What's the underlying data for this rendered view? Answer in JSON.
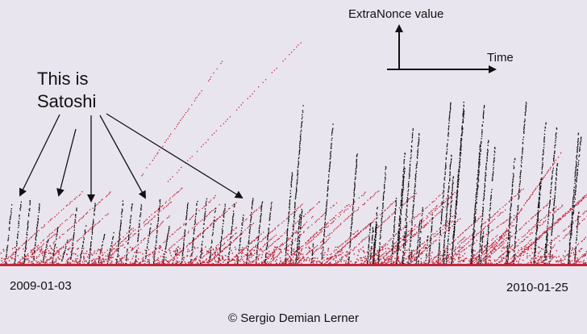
{
  "chart_data": {
    "type": "scatter",
    "axis_labels": {
      "y": "ExtraNonce value",
      "x": "Time"
    },
    "annotation": [
      "This is",
      "Satoshi"
    ],
    "x_range_labels": [
      "2009-01-03",
      "2010-01-25"
    ],
    "credit": "© Sergio Demian Lerner",
    "colors": [
      "#111111",
      "#c3263a"
    ]
  }
}
